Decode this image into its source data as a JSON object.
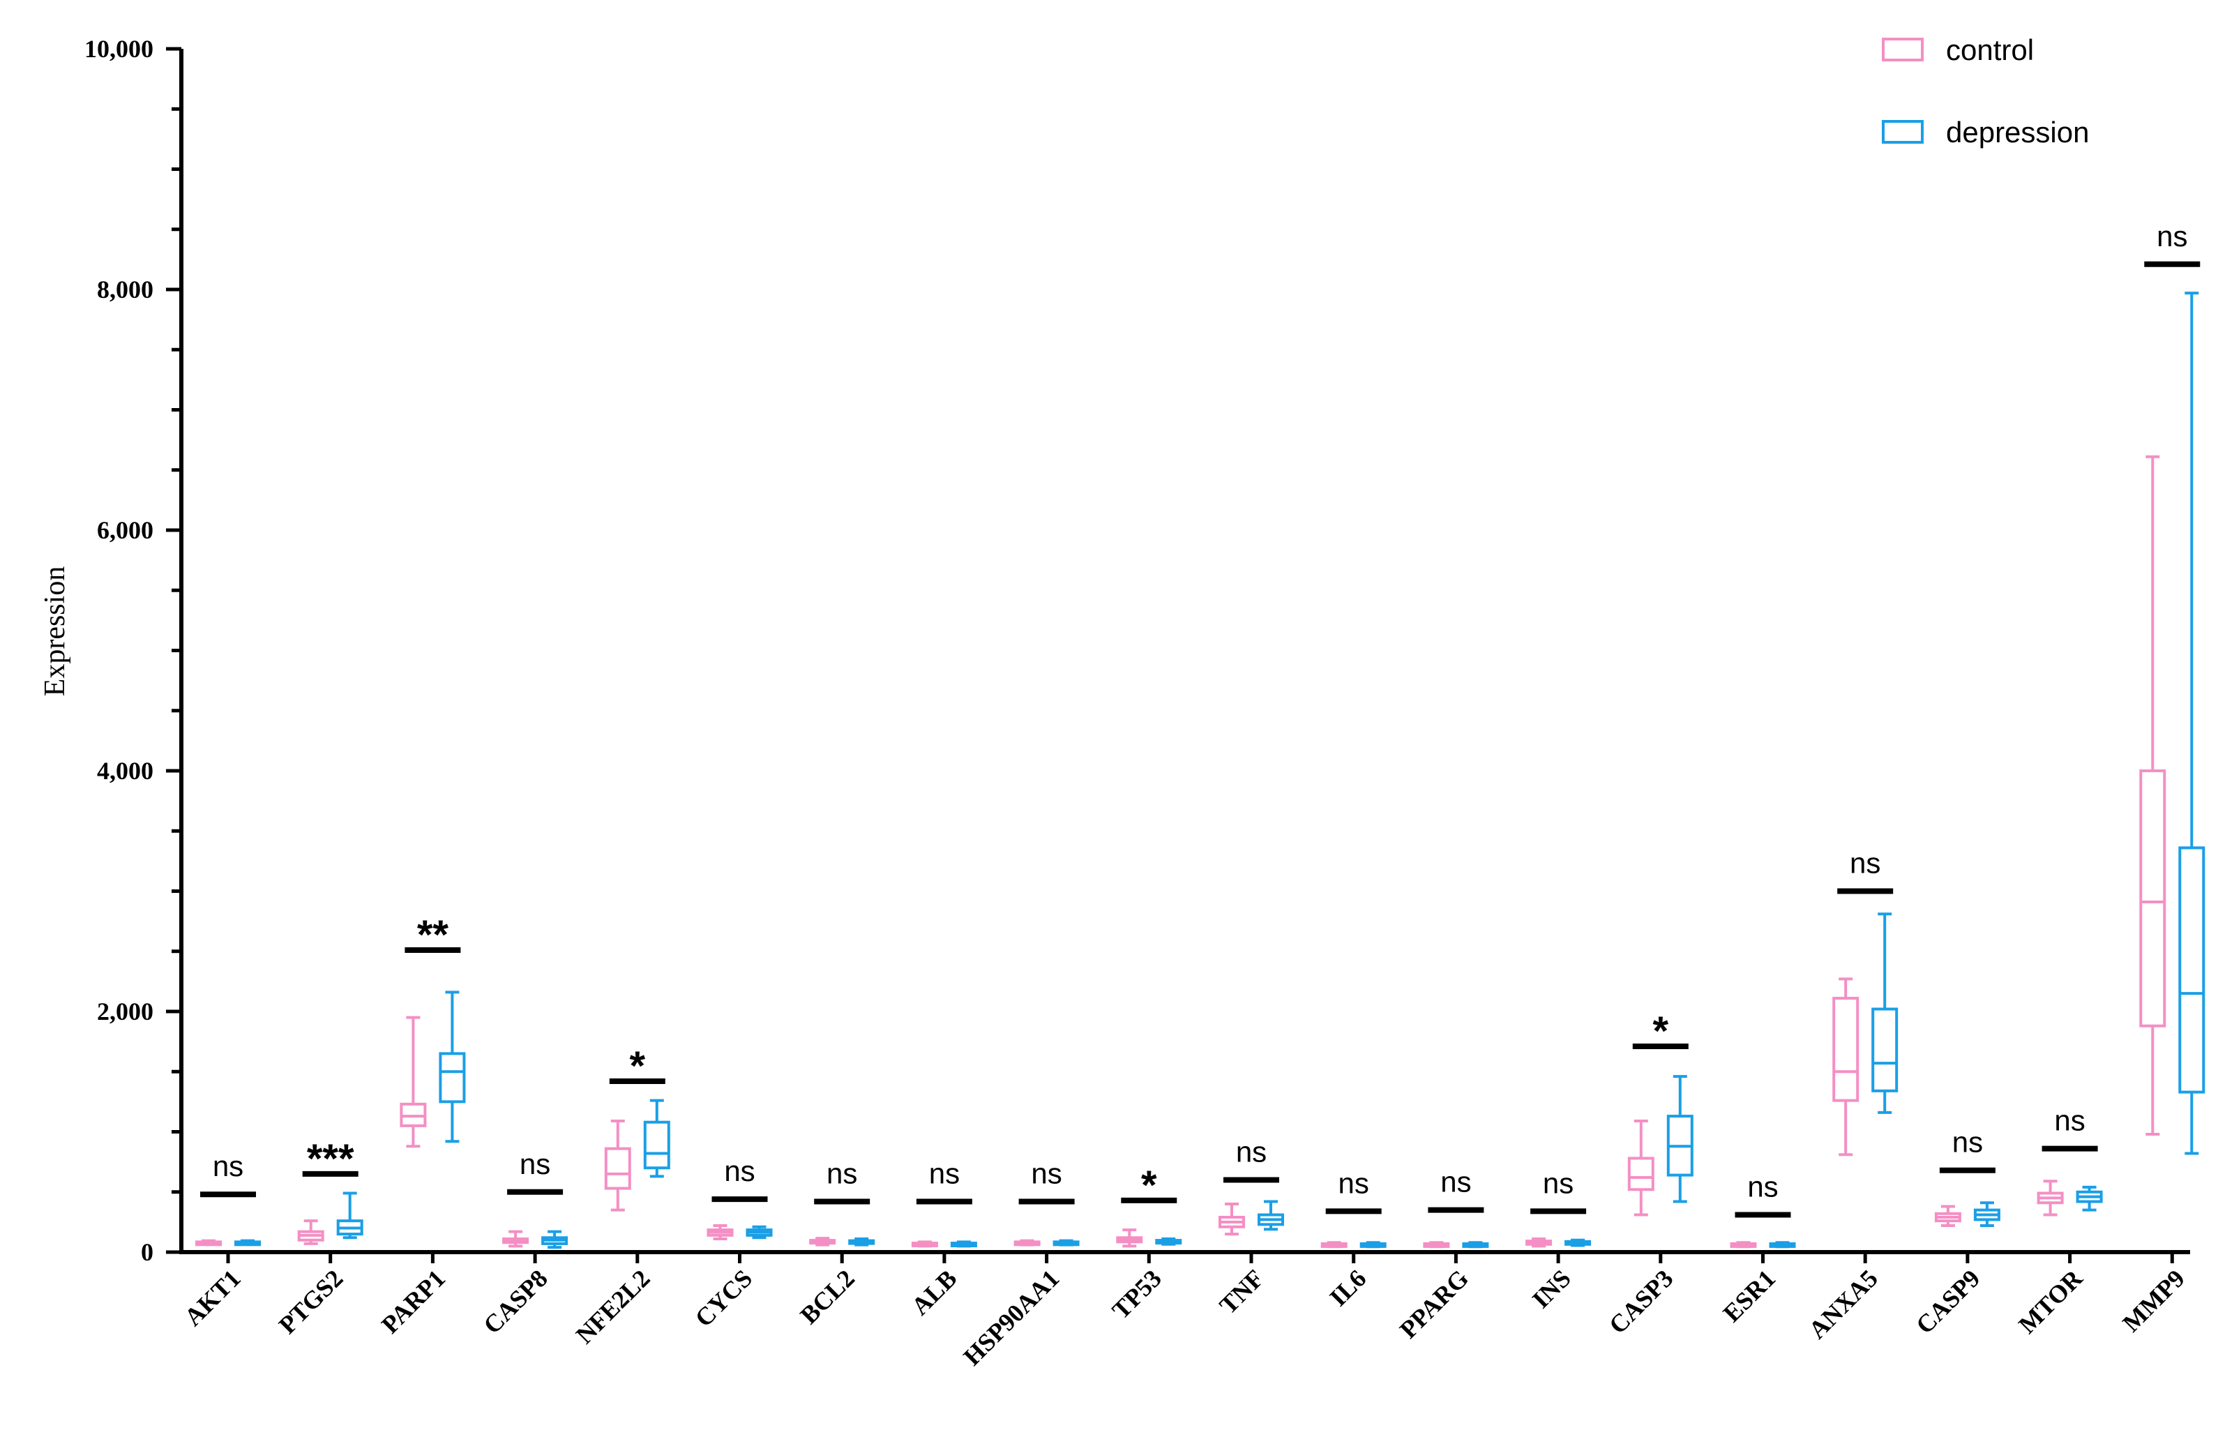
{
  "chart_data": {
    "type": "box",
    "ylabel": "Expression",
    "ylim": [
      0,
      10000
    ],
    "yticks": [
      0,
      2000,
      4000,
      6000,
      8000,
      10000
    ],
    "ytick_labels": [
      "0",
      "2,000",
      "4,000",
      "6,000",
      "8,000",
      "10,000"
    ],
    "legend_position": "top-right",
    "colors": {
      "control": "#f48fc4",
      "depression": "#1a9fe6"
    },
    "series": [
      {
        "name": "control"
      },
      {
        "name": "depression"
      }
    ],
    "categories": [
      "AKT1",
      "PTGS2",
      "PARP1",
      "CASP8",
      "NFE2L2",
      "CYCS",
      "BCL2",
      "ALB",
      "HSP90AA1",
      "TP53",
      "TNF",
      "IL6",
      "PPARG",
      "INS",
      "CASP3",
      "ESR1",
      "ANXA5",
      "CASP9",
      "MTOR",
      "MMP9"
    ],
    "groups": [
      {
        "gene": "AKT1",
        "significance": "ns",
        "bar_y": 480,
        "control": {
          "min": 65,
          "q1": 72,
          "median": 78,
          "q3": 85,
          "max": 95
        },
        "depression": {
          "min": 65,
          "q1": 72,
          "median": 78,
          "q3": 85,
          "max": 95
        }
      },
      {
        "gene": "PTGS2",
        "significance": "***",
        "bar_y": 650,
        "control": {
          "min": 70,
          "q1": 100,
          "median": 140,
          "q3": 170,
          "max": 260
        },
        "depression": {
          "min": 120,
          "q1": 150,
          "median": 200,
          "q3": 260,
          "max": 490
        }
      },
      {
        "gene": "PARP1",
        "significance": "**",
        "bar_y": 2510,
        "control": {
          "min": 880,
          "q1": 1050,
          "median": 1130,
          "q3": 1230,
          "max": 1950
        },
        "depression": {
          "min": 920,
          "q1": 1250,
          "median": 1500,
          "q3": 1650,
          "max": 2160
        }
      },
      {
        "gene": "CASP8",
        "significance": "ns",
        "bar_y": 500,
        "control": {
          "min": 50,
          "q1": 80,
          "median": 95,
          "q3": 110,
          "max": 170
        },
        "depression": {
          "min": 40,
          "q1": 70,
          "median": 100,
          "q3": 120,
          "max": 170
        }
      },
      {
        "gene": "NFE2L2",
        "significance": "*",
        "bar_y": 1420,
        "control": {
          "min": 350,
          "q1": 530,
          "median": 650,
          "q3": 860,
          "max": 1090
        },
        "depression": {
          "min": 630,
          "q1": 700,
          "median": 820,
          "q3": 1080,
          "max": 1260
        }
      },
      {
        "gene": "CYCS",
        "significance": "ns",
        "bar_y": 440,
        "control": {
          "min": 110,
          "q1": 140,
          "median": 165,
          "q3": 185,
          "max": 220
        },
        "depression": {
          "min": 120,
          "q1": 140,
          "median": 165,
          "q3": 185,
          "max": 210
        }
      },
      {
        "gene": "BCL2",
        "significance": "ns",
        "bar_y": 420,
        "control": {
          "min": 60,
          "q1": 75,
          "median": 88,
          "q3": 98,
          "max": 115
        },
        "depression": {
          "min": 60,
          "q1": 75,
          "median": 85,
          "q3": 95,
          "max": 110
        }
      },
      {
        "gene": "ALB",
        "significance": "ns",
        "bar_y": 420,
        "control": {
          "min": 50,
          "q1": 60,
          "median": 68,
          "q3": 75,
          "max": 85
        },
        "depression": {
          "min": 50,
          "q1": 60,
          "median": 68,
          "q3": 75,
          "max": 85
        }
      },
      {
        "gene": "HSP90AA1",
        "significance": "ns",
        "bar_y": 420,
        "control": {
          "min": 60,
          "q1": 70,
          "median": 78,
          "q3": 85,
          "max": 95
        },
        "depression": {
          "min": 60,
          "q1": 70,
          "median": 78,
          "q3": 85,
          "max": 95
        }
      },
      {
        "gene": "TP53",
        "significance": "*",
        "bar_y": 430,
        "control": {
          "min": 50,
          "q1": 85,
          "median": 100,
          "q3": 120,
          "max": 185
        },
        "depression": {
          "min": 65,
          "q1": 78,
          "median": 88,
          "q3": 98,
          "max": 110
        }
      },
      {
        "gene": "TNF",
        "significance": "ns",
        "bar_y": 600,
        "control": {
          "min": 150,
          "q1": 210,
          "median": 250,
          "q3": 290,
          "max": 400
        },
        "depression": {
          "min": 190,
          "q1": 230,
          "median": 270,
          "q3": 310,
          "max": 420
        }
      },
      {
        "gene": "IL6",
        "significance": "ns",
        "bar_y": 340,
        "control": {
          "min": 45,
          "q1": 55,
          "median": 62,
          "q3": 70,
          "max": 80
        },
        "depression": {
          "min": 45,
          "q1": 55,
          "median": 62,
          "q3": 70,
          "max": 80
        }
      },
      {
        "gene": "PPARG",
        "significance": "ns",
        "bar_y": 350,
        "control": {
          "min": 45,
          "q1": 55,
          "median": 62,
          "q3": 70,
          "max": 80
        },
        "depression": {
          "min": 45,
          "q1": 55,
          "median": 62,
          "q3": 70,
          "max": 80
        }
      },
      {
        "gene": "INS",
        "significance": "ns",
        "bar_y": 340,
        "control": {
          "min": 50,
          "q1": 65,
          "median": 78,
          "q3": 92,
          "max": 110
        },
        "depression": {
          "min": 55,
          "q1": 68,
          "median": 78,
          "q3": 88,
          "max": 100
        }
      },
      {
        "gene": "CASP3",
        "significance": "*",
        "bar_y": 1710,
        "control": {
          "min": 310,
          "q1": 520,
          "median": 620,
          "q3": 780,
          "max": 1090
        },
        "depression": {
          "min": 420,
          "q1": 640,
          "median": 880,
          "q3": 1130,
          "max": 1460
        }
      },
      {
        "gene": "ESR1",
        "significance": "ns",
        "bar_y": 310,
        "control": {
          "min": 45,
          "q1": 55,
          "median": 62,
          "q3": 70,
          "max": 80
        },
        "depression": {
          "min": 45,
          "q1": 55,
          "median": 62,
          "q3": 70,
          "max": 80
        }
      },
      {
        "gene": "ANXA5",
        "significance": "ns",
        "bar_y": 3000,
        "control": {
          "min": 810,
          "q1": 1260,
          "median": 1500,
          "q3": 2110,
          "max": 2270
        },
        "depression": {
          "min": 1160,
          "q1": 1340,
          "median": 1570,
          "q3": 2020,
          "max": 2810
        }
      },
      {
        "gene": "CASP9",
        "significance": "ns",
        "bar_y": 680,
        "control": {
          "min": 220,
          "q1": 260,
          "median": 290,
          "q3": 320,
          "max": 380
        },
        "depression": {
          "min": 220,
          "q1": 270,
          "median": 310,
          "q3": 350,
          "max": 410
        }
      },
      {
        "gene": "MTOR",
        "significance": "ns",
        "bar_y": 860,
        "control": {
          "min": 310,
          "q1": 410,
          "median": 450,
          "q3": 490,
          "max": 590
        },
        "depression": {
          "min": 350,
          "q1": 420,
          "median": 460,
          "q3": 500,
          "max": 540
        }
      },
      {
        "gene": "MMP9",
        "significance": "ns",
        "bar_y": 8210,
        "control": {
          "min": 980,
          "q1": 1880,
          "median": 2910,
          "q3": 4000,
          "max": 6610
        },
        "depression": {
          "min": 820,
          "q1": 1330,
          "median": 2150,
          "q3": 3360,
          "max": 7970
        }
      }
    ]
  }
}
